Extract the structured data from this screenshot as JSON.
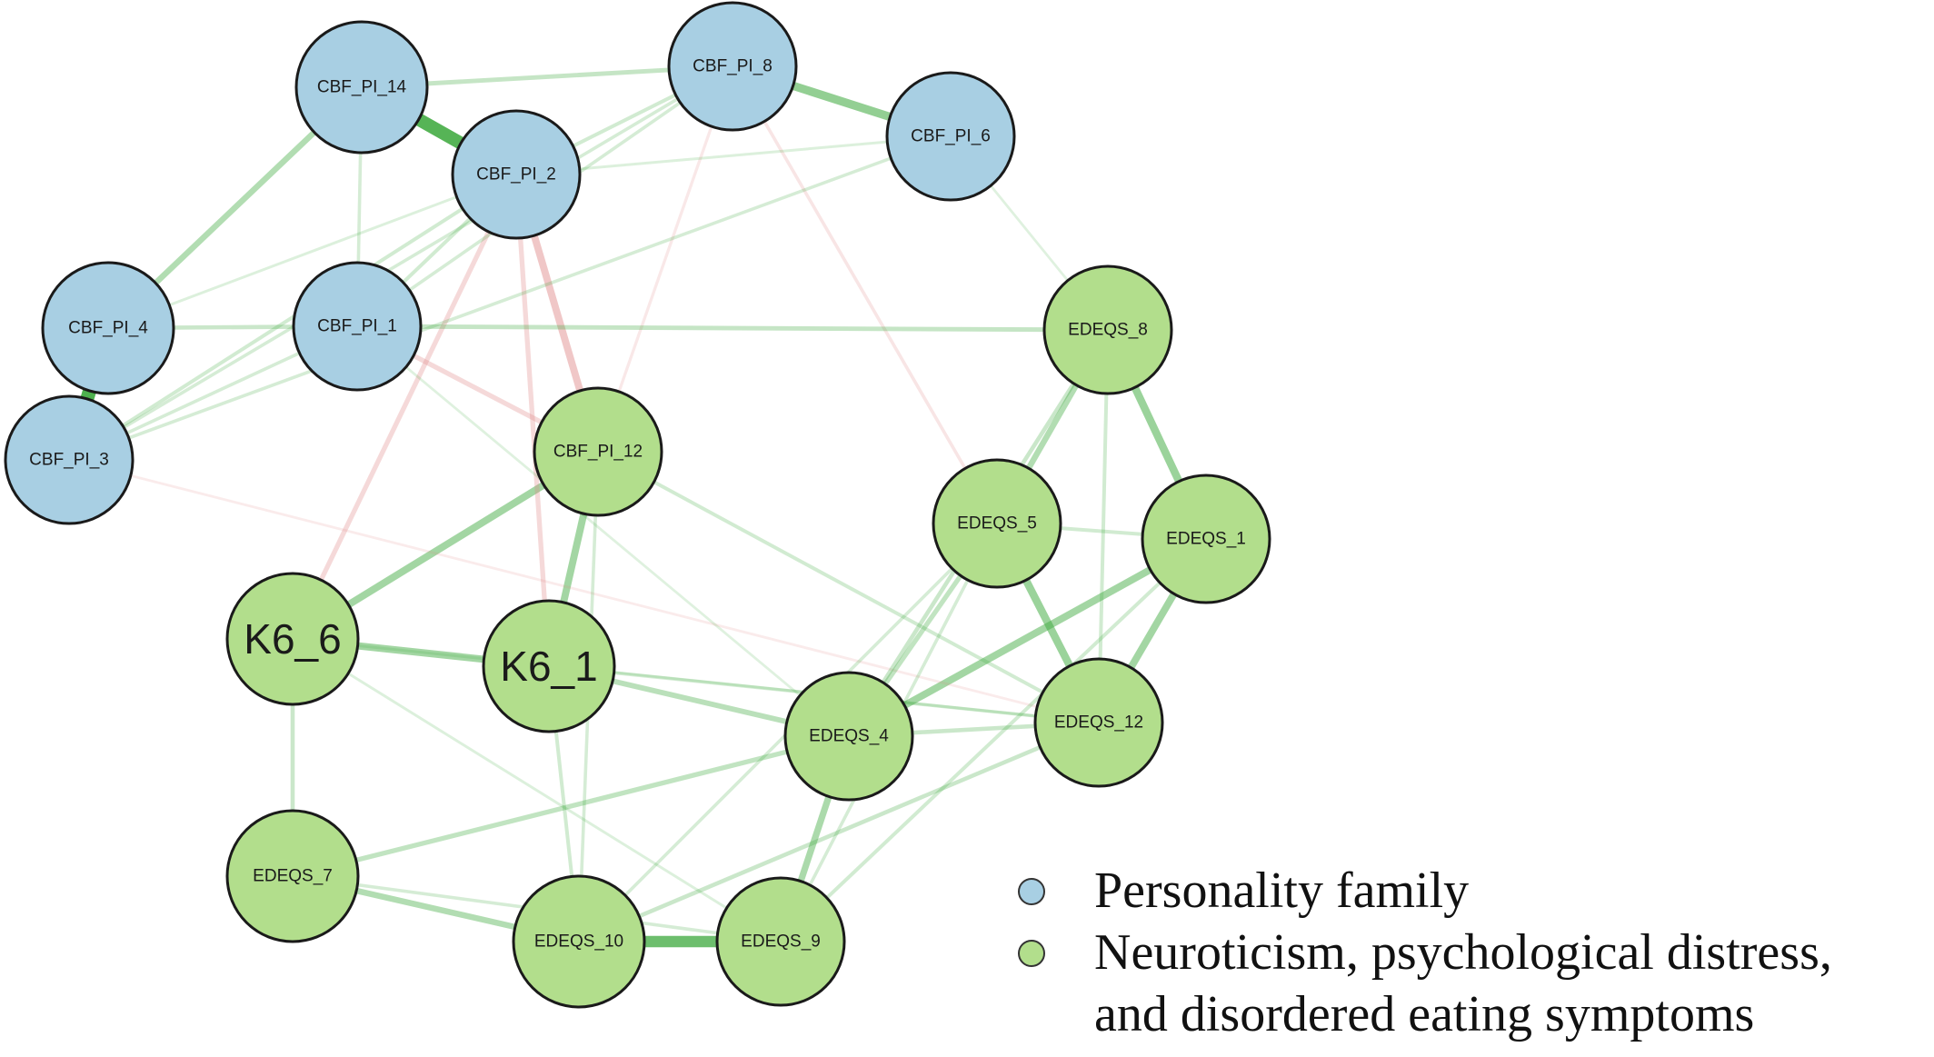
{
  "groups": [
    {
      "id": "personality",
      "label": "Personality family",
      "color": "#a8cfe3"
    },
    {
      "id": "neuro",
      "label": "Neuroticism, psychological distress,\nand disordered eating symptoms",
      "color": "#b2de8c"
    }
  ],
  "nodes": [
    {
      "id": "CBF_PI_14",
      "label": "CBF_PI_14",
      "group": "personality"
    },
    {
      "id": "CBF_PI_8",
      "label": "CBF_PI_8",
      "group": "personality"
    },
    {
      "id": "CBF_PI_2",
      "label": "CBF_PI_2",
      "group": "personality"
    },
    {
      "id": "CBF_PI_6",
      "label": "CBF_PI_6",
      "group": "personality"
    },
    {
      "id": "CBF_PI_4",
      "label": "CBF_PI_4",
      "group": "personality"
    },
    {
      "id": "CBF_PI_1",
      "label": "CBF_PI_1",
      "group": "personality"
    },
    {
      "id": "CBF_PI_3",
      "label": "CBF_PI_3",
      "group": "personality"
    },
    {
      "id": "CBF_PI_12",
      "label": "CBF_PI_12",
      "group": "neuro"
    },
    {
      "id": "EDEQS_8",
      "label": "EDEQS_8",
      "group": "neuro"
    },
    {
      "id": "EDEQS_5",
      "label": "EDEQS_5",
      "group": "neuro"
    },
    {
      "id": "EDEQS_1",
      "label": "EDEQS_1",
      "group": "neuro"
    },
    {
      "id": "K6_6",
      "label": "K6_6",
      "group": "neuro"
    },
    {
      "id": "K6_1",
      "label": "K6_1",
      "group": "neuro"
    },
    {
      "id": "EDEQS_12",
      "label": "EDEQS_12",
      "group": "neuro"
    },
    {
      "id": "EDEQS_4",
      "label": "EDEQS_4",
      "group": "neuro"
    },
    {
      "id": "EDEQS_7",
      "label": "EDEQS_7",
      "group": "neuro"
    },
    {
      "id": "EDEQS_10",
      "label": "EDEQS_10",
      "group": "neuro"
    },
    {
      "id": "EDEQS_9",
      "label": "EDEQS_9",
      "group": "neuro"
    }
  ],
  "edge_colors": {
    "positive": "#3faa3f",
    "negative": "#e08a8a"
  },
  "edges": [
    {
      "from": "CBF_PI_4",
      "to": "CBF_PI_3",
      "sign": "positive",
      "weight": 1.0
    },
    {
      "from": "CBF_PI_14",
      "to": "CBF_PI_2",
      "sign": "positive",
      "weight": 0.95
    },
    {
      "from": "EDEQS_10",
      "to": "EDEQS_9",
      "sign": "positive",
      "weight": 0.8
    },
    {
      "from": "CBF_PI_8",
      "to": "CBF_PI_6",
      "sign": "positive",
      "weight": 0.55
    },
    {
      "from": "EDEQS_8",
      "to": "EDEQS_1",
      "sign": "positive",
      "weight": 0.5
    },
    {
      "from": "EDEQS_5",
      "to": "EDEQS_12",
      "sign": "positive",
      "weight": 0.5
    },
    {
      "from": "EDEQS_1",
      "to": "EDEQS_12",
      "sign": "positive",
      "weight": 0.45
    },
    {
      "from": "EDEQS_1",
      "to": "EDEQS_4",
      "sign": "positive",
      "weight": 0.45
    },
    {
      "from": "K6_6",
      "to": "CBF_PI_12",
      "sign": "positive",
      "weight": 0.45
    },
    {
      "from": "CBF_PI_12",
      "to": "K6_1",
      "sign": "positive",
      "weight": 0.45
    },
    {
      "from": "K6_6",
      "to": "K6_1",
      "sign": "positive",
      "weight": 0.45
    },
    {
      "from": "CBF_PI_14",
      "to": "CBF_PI_4",
      "sign": "positive",
      "weight": 0.35
    },
    {
      "from": "EDEQS_8",
      "to": "EDEQS_5",
      "sign": "positive",
      "weight": 0.35
    },
    {
      "from": "EDEQS_4",
      "to": "EDEQS_9",
      "sign": "positive",
      "weight": 0.4
    },
    {
      "from": "EDEQS_7",
      "to": "EDEQS_10",
      "sign": "positive",
      "weight": 0.35
    },
    {
      "from": "K6_1",
      "to": "EDEQS_4",
      "sign": "positive",
      "weight": 0.3
    },
    {
      "from": "CBF_PI_2",
      "to": "CBF_PI_12",
      "sign": "negative",
      "weight": 0.45
    },
    {
      "from": "CBF_PI_2",
      "to": "K6_6",
      "sign": "negative",
      "weight": 0.25
    },
    {
      "from": "CBF_PI_2",
      "to": "K6_1",
      "sign": "negative",
      "weight": 0.25
    },
    {
      "from": "CBF_PI_1",
      "to": "CBF_PI_12",
      "sign": "negative",
      "weight": 0.25
    },
    {
      "from": "CBF_PI_8",
      "to": "EDEQS_5",
      "sign": "negative",
      "weight": 0.12
    },
    {
      "from": "CBF_PI_8",
      "to": "CBF_PI_12",
      "sign": "negative",
      "weight": 0.1
    },
    {
      "from": "CBF_PI_3",
      "to": "EDEQS_12",
      "sign": "negative",
      "weight": 0.06
    },
    {
      "from": "CBF_PI_14",
      "to": "CBF_PI_8",
      "sign": "positive",
      "weight": 0.22
    },
    {
      "from": "CBF_PI_4",
      "to": "CBF_PI_1",
      "sign": "positive",
      "weight": 0.2
    },
    {
      "from": "CBF_PI_1",
      "to": "EDEQS_8",
      "sign": "positive",
      "weight": 0.22
    },
    {
      "from": "CBF_PI_2",
      "to": "CBF_PI_8",
      "sign": "positive",
      "weight": 0.15
    },
    {
      "from": "CBF_PI_2",
      "to": "CBF_PI_1",
      "sign": "positive",
      "weight": 0.15
    },
    {
      "from": "CBF_PI_14",
      "to": "CBF_PI_1",
      "sign": "positive",
      "weight": 0.12
    },
    {
      "from": "CBF_PI_3",
      "to": "CBF_PI_2",
      "sign": "positive",
      "weight": 0.15
    },
    {
      "from": "CBF_PI_3",
      "to": "CBF_PI_8",
      "sign": "positive",
      "weight": 0.12
    },
    {
      "from": "CBF_PI_3",
      "to": "CBF_PI_6",
      "sign": "positive",
      "weight": 0.12
    },
    {
      "from": "CBF_PI_3",
      "to": "CBF_PI_1",
      "sign": "positive",
      "weight": 0.12
    },
    {
      "from": "CBF_PI_1",
      "to": "CBF_PI_8",
      "sign": "positive",
      "weight": 0.12
    },
    {
      "from": "CBF_PI_4",
      "to": "CBF_PI_2",
      "sign": "positive",
      "weight": 0.08
    },
    {
      "from": "CBF_PI_2",
      "to": "CBF_PI_6",
      "sign": "positive",
      "weight": 0.08
    },
    {
      "from": "CBF_PI_6",
      "to": "EDEQS_8",
      "sign": "positive",
      "weight": 0.06
    },
    {
      "from": "CBF_PI_1",
      "to": "EDEQS_4",
      "sign": "positive",
      "weight": 0.06
    },
    {
      "from": "CBF_PI_12",
      "to": "EDEQS_12",
      "sign": "positive",
      "weight": 0.15
    },
    {
      "from": "CBF_PI_12",
      "to": "EDEQS_10",
      "sign": "positive",
      "weight": 0.12
    },
    {
      "from": "K6_6",
      "to": "EDEQS_7",
      "sign": "positive",
      "weight": 0.2
    },
    {
      "from": "K6_6",
      "to": "EDEQS_9",
      "sign": "positive",
      "weight": 0.08
    },
    {
      "from": "K6_6",
      "to": "EDEQS_12",
      "sign": "positive",
      "weight": 0.08
    },
    {
      "from": "K6_1",
      "to": "EDEQS_10",
      "sign": "positive",
      "weight": 0.15
    },
    {
      "from": "K6_1",
      "to": "EDEQS_12",
      "sign": "positive",
      "weight": 0.12
    },
    {
      "from": "EDEQS_7",
      "to": "EDEQS_4",
      "sign": "positive",
      "weight": 0.25
    },
    {
      "from": "EDEQS_10",
      "to": "EDEQS_12",
      "sign": "positive",
      "weight": 0.2
    },
    {
      "from": "EDEQS_10",
      "to": "EDEQS_5",
      "sign": "positive",
      "weight": 0.12
    },
    {
      "from": "EDEQS_4",
      "to": "EDEQS_12",
      "sign": "positive",
      "weight": 0.2
    },
    {
      "from": "EDEQS_5",
      "to": "EDEQS_1",
      "sign": "positive",
      "weight": 0.15
    },
    {
      "from": "EDEQS_4",
      "to": "EDEQS_5",
      "sign": "positive",
      "weight": 0.25
    },
    {
      "from": "EDEQS_4",
      "to": "EDEQS_8",
      "sign": "positive",
      "weight": 0.2
    },
    {
      "from": "EDEQS_8",
      "to": "EDEQS_12",
      "sign": "positive",
      "weight": 0.15
    },
    {
      "from": "EDEQS_9",
      "to": "EDEQS_1",
      "sign": "positive",
      "weight": 0.15
    },
    {
      "from": "EDEQS_9",
      "to": "EDEQS_5",
      "sign": "positive",
      "weight": 0.12
    },
    {
      "from": "EDEQS_7",
      "to": "EDEQS_9",
      "sign": "positive",
      "weight": 0.12
    }
  ]
}
